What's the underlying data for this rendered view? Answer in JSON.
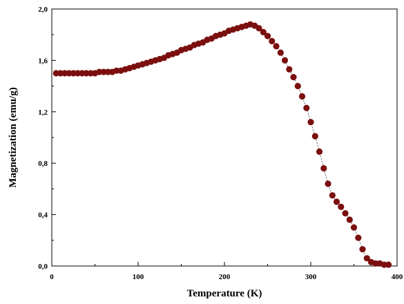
{
  "chart_data": {
    "type": "scatter",
    "title": "",
    "xlabel": "Temperature (K)",
    "ylabel": "Magnetization (emu/g)",
    "xlim": [
      0,
      400
    ],
    "ylim": [
      0,
      2.0
    ],
    "grid": false,
    "legend": "none",
    "x_ticks": [
      {
        "value": 0,
        "label": "0"
      },
      {
        "value": 100,
        "label": "100"
      },
      {
        "value": 200,
        "label": "200"
      },
      {
        "value": 300,
        "label": "300"
      },
      {
        "value": 400,
        "label": "400"
      }
    ],
    "y_ticks": [
      {
        "value": 0,
        "label": "0,0"
      },
      {
        "value": 0.4,
        "label": "0,4"
      },
      {
        "value": 0.8,
        "label": "0,8"
      },
      {
        "value": 1.2,
        "label": "1,2"
      },
      {
        "value": 1.6,
        "label": "1,6"
      },
      {
        "value": 2.0,
        "label": "2,0"
      }
    ],
    "marker_color": "#7b0f0f",
    "line_color": "#333333",
    "series": [
      {
        "x": [
          5,
          10,
          15,
          20,
          25,
          30,
          35,
          40,
          45,
          50,
          55,
          60,
          65,
          70,
          75,
          80,
          85,
          90,
          95,
          100,
          105,
          110,
          115,
          120,
          125,
          130,
          135,
          140,
          145,
          150,
          155,
          160,
          165,
          170,
          175,
          180,
          185,
          190,
          195,
          200,
          205,
          210,
          215,
          220,
          225,
          230,
          235,
          240,
          245,
          250,
          255,
          260,
          265,
          270,
          275,
          280,
          285,
          290,
          295,
          300,
          305,
          310,
          315,
          320,
          325,
          330,
          335,
          340,
          345,
          350,
          355,
          360,
          365,
          370,
          375,
          380,
          385,
          390
        ],
        "y": [
          1.5,
          1.5,
          1.5,
          1.5,
          1.5,
          1.5,
          1.5,
          1.5,
          1.5,
          1.5,
          1.51,
          1.51,
          1.51,
          1.51,
          1.52,
          1.52,
          1.53,
          1.54,
          1.55,
          1.56,
          1.57,
          1.58,
          1.59,
          1.6,
          1.61,
          1.62,
          1.64,
          1.65,
          1.66,
          1.68,
          1.69,
          1.7,
          1.72,
          1.73,
          1.74,
          1.76,
          1.77,
          1.79,
          1.8,
          1.81,
          1.83,
          1.84,
          1.85,
          1.86,
          1.87,
          1.88,
          1.87,
          1.85,
          1.82,
          1.79,
          1.75,
          1.71,
          1.66,
          1.6,
          1.53,
          1.47,
          1.4,
          1.32,
          1.23,
          1.12,
          1.01,
          0.89,
          0.76,
          0.64,
          0.55,
          0.5,
          0.46,
          0.41,
          0.36,
          0.3,
          0.22,
          0.13,
          0.06,
          0.03,
          0.02,
          0.02,
          0.01,
          0.01
        ]
      }
    ]
  }
}
